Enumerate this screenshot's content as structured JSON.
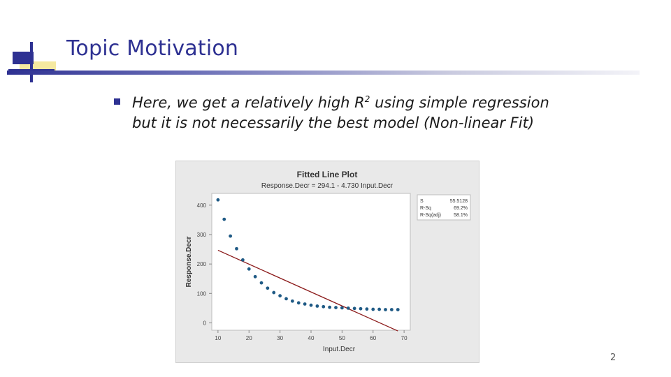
{
  "slide": {
    "title": "Topic Motivation",
    "bullet_pre": "Here, we get a relatively high R",
    "bullet_sup": "2",
    "bullet_post": " using simple regression",
    "bullet_line2": "but it is not necessarily the best model (Non-linear Fit)",
    "page_number": "2",
    "accent_color": "#2e3192",
    "logo_yellow": "#f5e9a0"
  },
  "chart_data": {
    "type": "scatter",
    "title": "Fitted Line Plot",
    "subtitle": "Response.Decr = 294.1 - 4.730 Input.Decr",
    "xlabel": "Input.Decr",
    "ylabel": "Response.Decr",
    "xlim": [
      8,
      72
    ],
    "ylim": [
      -25,
      440
    ],
    "x_ticks": [
      10,
      20,
      30,
      40,
      50,
      60,
      70
    ],
    "y_ticks": [
      0,
      100,
      200,
      300,
      400
    ],
    "grid": false,
    "point_color": "#1f5a85",
    "line_color": "#8b1a1a",
    "fit_line": {
      "intercept": 294.1,
      "slope": -4.73,
      "x_range": [
        10,
        68
      ]
    },
    "points": {
      "x": [
        10,
        12,
        14,
        16,
        18,
        20,
        22,
        24,
        26,
        28,
        30,
        32,
        34,
        36,
        38,
        40,
        42,
        44,
        46,
        48,
        50,
        52,
        54,
        56,
        58,
        60,
        62,
        64,
        66,
        68
      ],
      "y": [
        418,
        352,
        295,
        252,
        214,
        183,
        157,
        136,
        118,
        103,
        92,
        82,
        74,
        68,
        64,
        60,
        57,
        55,
        53,
        52,
        51,
        50,
        49,
        48,
        47,
        46,
        46,
        45,
        45,
        45
      ]
    },
    "stats_table": [
      {
        "label": "S",
        "value": "55.5128"
      },
      {
        "label": "R-Sq",
        "value": "69.2%"
      },
      {
        "label": "R-Sq(adj)",
        "value": "58.1%"
      }
    ]
  }
}
